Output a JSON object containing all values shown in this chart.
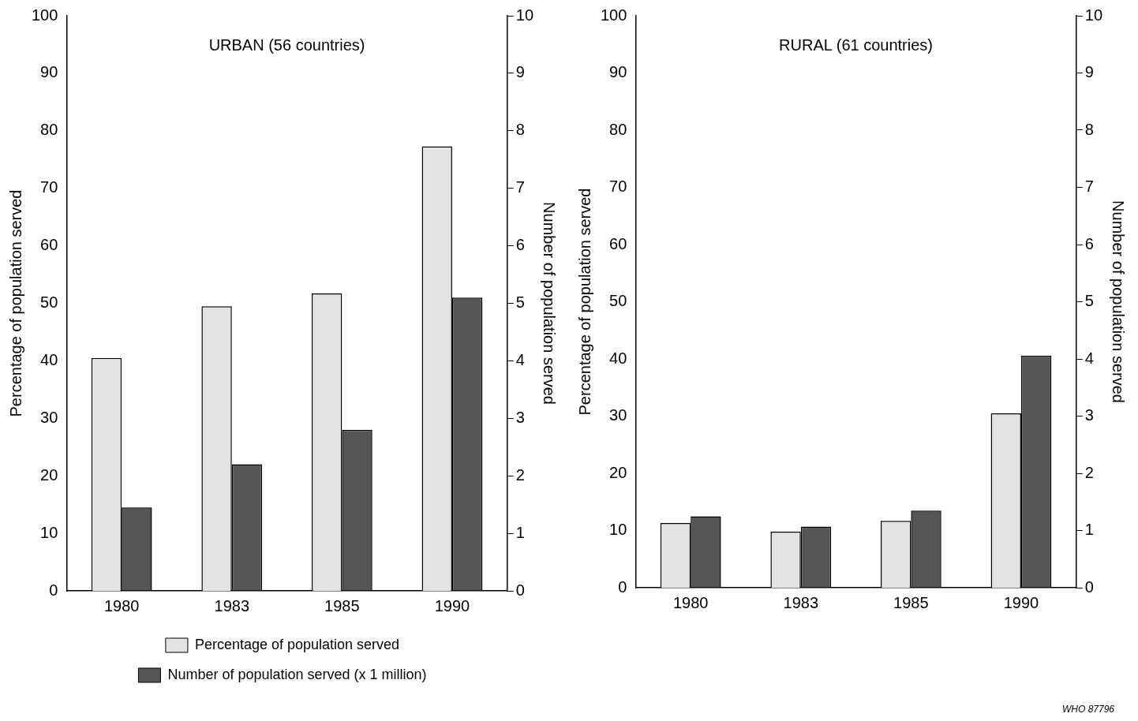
{
  "chart_data": [
    {
      "type": "bar",
      "title": "URBAN (56 countries)",
      "categories": [
        "1980",
        "1983",
        "1985",
        "1990"
      ],
      "ylabel": "Percentage of population served",
      "y2label": "Number of population served",
      "ylim": [
        0,
        100
      ],
      "yticks": [
        0,
        10,
        20,
        30,
        40,
        50,
        60,
        70,
        80,
        90,
        100
      ],
      "y2lim": [
        0,
        10
      ],
      "y2ticks": [
        0,
        1,
        2,
        3,
        4,
        5,
        6,
        7,
        8,
        9,
        10
      ],
      "grid": false,
      "legend": "bottom",
      "series": [
        {
          "name": "Percentage of population served",
          "color": "#e3e3e3",
          "values": [
            40.5,
            49.5,
            51.7,
            77.3
          ]
        },
        {
          "name": "Number of population served (x 1 million)",
          "color": "#555555",
          "axis": "y2",
          "values": [
            1.45,
            2.2,
            2.8,
            5.1
          ]
        }
      ]
    },
    {
      "type": "bar",
      "title": "RURAL (61 countries)",
      "categories": [
        "1980",
        "1983",
        "1985",
        "1990"
      ],
      "ylabel": "Percentage of population served",
      "y2label": "Number of population served",
      "ylim": [
        0,
        100
      ],
      "yticks": [
        0,
        10,
        20,
        30,
        40,
        50,
        60,
        70,
        80,
        90,
        100
      ],
      "y2lim": [
        0,
        10
      ],
      "y2ticks": [
        0,
        1,
        2,
        3,
        4,
        5,
        6,
        7,
        8,
        9,
        10
      ],
      "grid": false,
      "legend": false,
      "annotations": [
        "WHO 87796"
      ],
      "series": [
        {
          "color": "#e3e3e3",
          "values": [
            11.3,
            9.8,
            11.7,
            30.5
          ]
        },
        {
          "color": "#555555",
          "axis": "y2",
          "values": [
            1.25,
            1.07,
            1.35,
            4.06
          ]
        }
      ]
    }
  ]
}
